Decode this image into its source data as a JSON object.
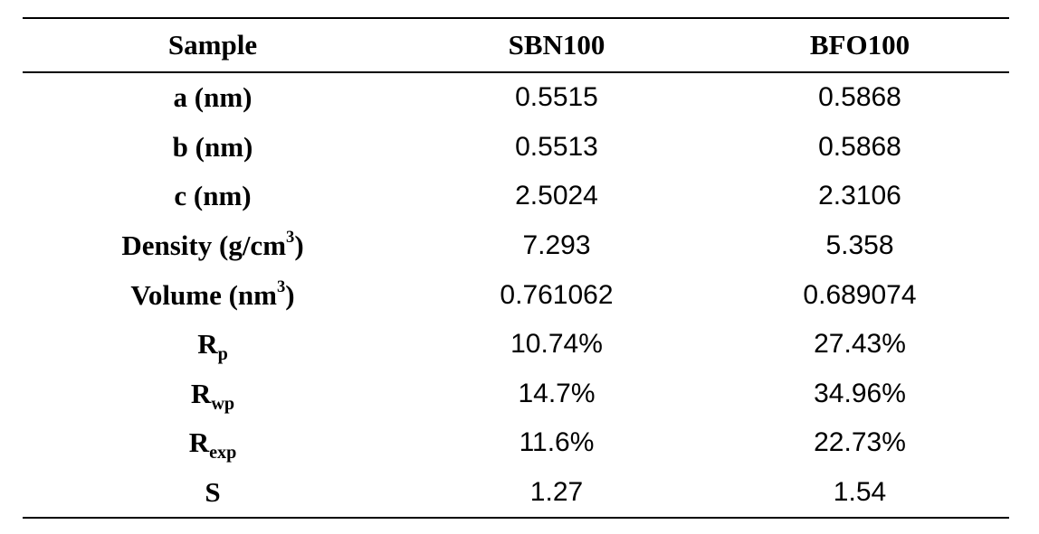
{
  "table": {
    "headers": [
      "Sample",
      "SBN100",
      "BFO100"
    ],
    "rows": [
      {
        "label": "a (nm)",
        "label_sup": "",
        "label_sup_after": "",
        "label_sub": "",
        "sbn100": "0.5515",
        "bfo100": "0.5868"
      },
      {
        "label": "b (nm)",
        "label_sup": "",
        "label_sup_after": "",
        "label_sub": "",
        "sbn100": "0.5513",
        "bfo100": "0.5868"
      },
      {
        "label": "c (nm)",
        "label_sup": "",
        "label_sup_after": "",
        "label_sub": "",
        "sbn100": "2.5024",
        "bfo100": "2.3106"
      },
      {
        "label": "Density (g/cm",
        "label_sup": "3",
        "label_sup_after": ")",
        "label_sub": "",
        "sbn100": "7.293",
        "bfo100": "5.358"
      },
      {
        "label": "Volume (nm",
        "label_sup": "3",
        "label_sup_after": ")",
        "label_sub": "",
        "sbn100": "0.761062",
        "bfo100": "0.689074"
      },
      {
        "label": "R",
        "label_sup": "",
        "label_sup_after": "",
        "label_sub": "p",
        "sbn100": "10.74%",
        "bfo100": "27.43%"
      },
      {
        "label": "R",
        "label_sup": "",
        "label_sup_after": "",
        "label_sub": "wp",
        "sbn100": "14.7%",
        "bfo100": "34.96%"
      },
      {
        "label": "R",
        "label_sup": "",
        "label_sup_after": "",
        "label_sub": "exp",
        "sbn100": "11.6%",
        "bfo100": "22.73%"
      },
      {
        "label": "S",
        "label_sup": "",
        "label_sup_after": "",
        "label_sub": "",
        "sbn100": "1.27",
        "bfo100": "1.54"
      }
    ]
  }
}
